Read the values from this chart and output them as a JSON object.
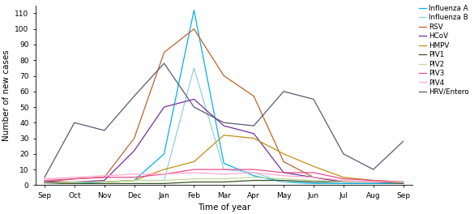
{
  "months": [
    "Sep",
    "Oct",
    "Nov",
    "Dec",
    "Jan",
    "Feb",
    "Mar",
    "Apr",
    "May",
    "Jun",
    "Jul",
    "Aug",
    "Sep"
  ],
  "series": {
    "Influenza A": {
      "color": "#00B0F0",
      "values": [
        1,
        1,
        2,
        3,
        20,
        112,
        14,
        6,
        2,
        1,
        1,
        1,
        1
      ]
    },
    "Influenza B": {
      "color": "#92D0E0",
      "values": [
        1,
        2,
        2,
        3,
        3,
        75,
        10,
        8,
        2,
        3,
        2,
        2,
        1
      ]
    },
    "RSV": {
      "color": "#C0622A",
      "values": [
        2,
        4,
        5,
        30,
        85,
        100,
        70,
        57,
        15,
        5,
        2,
        2,
        2
      ]
    },
    "HCoV": {
      "color": "#7030A0",
      "values": [
        2,
        2,
        3,
        22,
        50,
        55,
        38,
        33,
        8,
        5,
        2,
        2,
        2
      ]
    },
    "HMPV": {
      "color": "#C09010",
      "values": [
        1,
        2,
        2,
        3,
        10,
        15,
        32,
        30,
        20,
        12,
        5,
        3,
        2
      ]
    },
    "PIV1": {
      "color": "#375623",
      "values": [
        1,
        1,
        1,
        1,
        1,
        2,
        2,
        3,
        3,
        2,
        2,
        2,
        1
      ]
    },
    "PIV2": {
      "color": "#C4D79B",
      "values": [
        1,
        2,
        2,
        3,
        3,
        4,
        4,
        5,
        4,
        3,
        2,
        2,
        2
      ]
    },
    "PIV3": {
      "color": "#E84C8B",
      "values": [
        3,
        4,
        5,
        5,
        7,
        10,
        10,
        10,
        8,
        8,
        4,
        3,
        2
      ]
    },
    "PIV4": {
      "color": "#FFAACC",
      "values": [
        4,
        5,
        6,
        7,
        7,
        8,
        7,
        8,
        6,
        5,
        3,
        2,
        2
      ]
    },
    "HRV/Entero": {
      "color": "#595975",
      "values": [
        5,
        40,
        35,
        57,
        78,
        50,
        40,
        38,
        60,
        55,
        20,
        10,
        28
      ]
    }
  },
  "xlabel": "Time of year",
  "ylabel": "Number of new cases",
  "ylim": [
    0,
    115
  ],
  "yticks": [
    0,
    10,
    20,
    30,
    40,
    50,
    60,
    70,
    80,
    90,
    100,
    110
  ],
  "figsize": [
    5.85,
    2.64
  ],
  "dpi": 100
}
